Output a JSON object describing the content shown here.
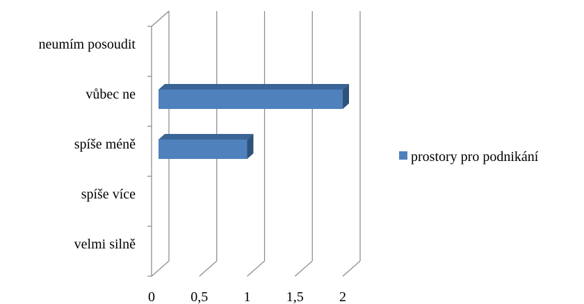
{
  "chart_data": {
    "type": "bar",
    "orientation": "horizontal",
    "style": "3d",
    "categories": [
      "velmi silně",
      "spíše více",
      "spíše méně",
      "vůbec ne",
      "neumím posoudit"
    ],
    "series": [
      {
        "name": "prostory pro podnikání",
        "values": [
          0,
          0,
          1,
          2,
          0
        ],
        "color": "#4F81BD"
      }
    ],
    "xlim": [
      0,
      2
    ],
    "xticks": [
      "0",
      "0,5",
      "1",
      "1,5",
      "2"
    ],
    "grid": "vertical",
    "legend": "right"
  }
}
